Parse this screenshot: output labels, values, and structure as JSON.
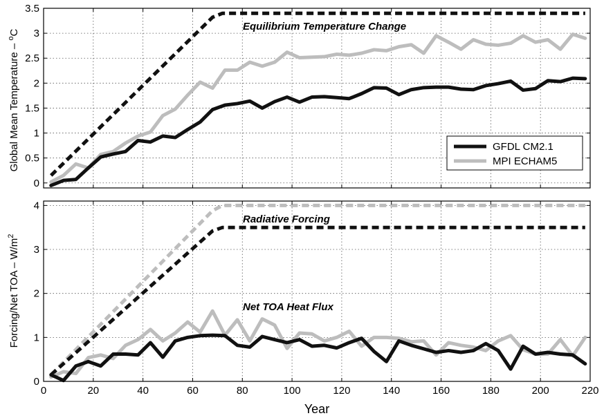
{
  "chart_data": [
    {
      "type": "line",
      "ylabel": "Global Mean Temperature – °C",
      "ylabel_main": "Global Mean Temperature – ",
      "ylabel_sup": "o",
      "ylabel_unit": "C",
      "xlim": [
        0,
        220
      ],
      "ylim": [
        -0.1,
        3.5
      ],
      "yticks": [
        0,
        0.5,
        1,
        1.5,
        2,
        2.5,
        3,
        3.5
      ],
      "ytick_labels": [
        "0",
        "0.5",
        "1",
        "1.5",
        "2",
        "2.5",
        "3",
        "3.5"
      ],
      "grid": true,
      "legend_position": "lower-right",
      "annotations": [
        {
          "text": "Equilibrium Temperature Change",
          "x": 76,
          "y": 3.1
        }
      ],
      "series": [
        {
          "name": "GFDL CM2.1",
          "style": "solid",
          "color": "#111111",
          "x": [
            3,
            8,
            13,
            18,
            23,
            28,
            33,
            38,
            43,
            48,
            53,
            58,
            63,
            68,
            73,
            78,
            83,
            88,
            93,
            98,
            103,
            108,
            113,
            118,
            123,
            128,
            133,
            138,
            143,
            148,
            153,
            158,
            163,
            168,
            173,
            178,
            183,
            188,
            193,
            198,
            203,
            208,
            213,
            218
          ],
          "y": [
            -0.05,
            0.05,
            0.07,
            0.3,
            0.52,
            0.58,
            0.63,
            0.85,
            0.82,
            0.94,
            0.91,
            1.07,
            1.22,
            1.47,
            1.56,
            1.59,
            1.64,
            1.5,
            1.63,
            1.72,
            1.62,
            1.72,
            1.73,
            1.71,
            1.69,
            1.79,
            1.91,
            1.9,
            1.77,
            1.87,
            1.91,
            1.92,
            1.92,
            1.88,
            1.87,
            1.95,
            1.99,
            2.04,
            1.86,
            1.89,
            2.05,
            2.03,
            2.1,
            2.09
          ]
        },
        {
          "name": "MPI ECHAM5",
          "style": "solid",
          "color": "#bdbdbd",
          "x": [
            3,
            8,
            13,
            18,
            23,
            28,
            33,
            38,
            43,
            48,
            53,
            58,
            63,
            68,
            73,
            78,
            83,
            88,
            93,
            98,
            103,
            108,
            113,
            118,
            123,
            128,
            133,
            138,
            143,
            148,
            153,
            158,
            163,
            168,
            173,
            178,
            183,
            188,
            193,
            198,
            203,
            208,
            213,
            218
          ],
          "y": [
            0.02,
            0.15,
            0.38,
            0.3,
            0.57,
            0.63,
            0.8,
            0.94,
            1.02,
            1.35,
            1.48,
            1.76,
            2.02,
            1.9,
            2.26,
            2.26,
            2.42,
            2.34,
            2.42,
            2.62,
            2.51,
            2.52,
            2.53,
            2.58,
            2.56,
            2.6,
            2.67,
            2.65,
            2.73,
            2.77,
            2.6,
            2.95,
            2.82,
            2.68,
            2.87,
            2.78,
            2.76,
            2.8,
            2.95,
            2.82,
            2.87,
            2.68,
            2.98,
            2.9
          ]
        },
        {
          "name": "",
          "style": "dashed",
          "color": "#111111",
          "x": [
            3,
            68,
            72,
            218
          ],
          "y": [
            0.15,
            3.32,
            3.4,
            3.4
          ]
        },
        {
          "name": "",
          "style": "dashed",
          "color": "#bdbdbd",
          "x": [
            3,
            68,
            72,
            218
          ],
          "y": [
            0.15,
            3.32,
            3.4,
            3.4
          ]
        }
      ]
    },
    {
      "type": "line",
      "ylabel": "Forcing/Net TOA – W/m²",
      "ylabel_main": "Forcing/Net TOA – W/m",
      "ylabel_sup": "2",
      "xlabel": "Year",
      "xlim": [
        0,
        220
      ],
      "ylim": [
        0,
        4.1
      ],
      "yticks": [
        0,
        1,
        2,
        3,
        4
      ],
      "ytick_labels": [
        "0",
        "1",
        "2",
        "3",
        "4"
      ],
      "xticks": [
        0,
        20,
        40,
        60,
        80,
        100,
        120,
        140,
        160,
        180,
        200,
        220
      ],
      "xtick_labels": [
        "0",
        "20",
        "40",
        "60",
        "80",
        "100",
        "120",
        "140",
        "160",
        "180",
        "200",
        "220"
      ],
      "grid": true,
      "annotations": [
        {
          "text": "Radiative Forcing",
          "x": 76,
          "y": 3.6
        },
        {
          "text": "Net TOA Heat Flux",
          "x": 76,
          "y": 1.62
        }
      ],
      "series": [
        {
          "name": "GFDL CM2.1",
          "style": "solid",
          "color": "#111111",
          "x": [
            3,
            8,
            13,
            18,
            23,
            28,
            33,
            38,
            43,
            48,
            53,
            58,
            63,
            68,
            73,
            78,
            83,
            88,
            93,
            98,
            103,
            108,
            113,
            118,
            123,
            128,
            133,
            138,
            143,
            148,
            153,
            158,
            163,
            168,
            173,
            178,
            183,
            188,
            193,
            198,
            203,
            208,
            213,
            218
          ],
          "y": [
            0.15,
            0.02,
            0.35,
            0.45,
            0.35,
            0.62,
            0.62,
            0.6,
            0.88,
            0.55,
            0.92,
            1.0,
            1.04,
            1.05,
            1.04,
            0.82,
            0.78,
            1.02,
            0.95,
            0.88,
            0.95,
            0.8,
            0.82,
            0.76,
            0.88,
            0.98,
            0.68,
            0.45,
            0.92,
            0.82,
            0.74,
            0.66,
            0.7,
            0.66,
            0.7,
            0.86,
            0.7,
            0.28,
            0.8,
            0.62,
            0.66,
            0.62,
            0.6,
            0.4
          ]
        },
        {
          "name": "MPI ECHAM5",
          "style": "solid",
          "color": "#bdbdbd",
          "x": [
            3,
            8,
            13,
            18,
            23,
            28,
            33,
            38,
            43,
            48,
            53,
            58,
            63,
            68,
            73,
            78,
            83,
            88,
            93,
            98,
            103,
            108,
            113,
            118,
            123,
            128,
            133,
            138,
            143,
            148,
            153,
            158,
            163,
            168,
            173,
            178,
            183,
            188,
            193,
            198,
            203,
            208,
            213,
            218
          ],
          "y": [
            0.1,
            0.22,
            0.18,
            0.54,
            0.6,
            0.52,
            0.82,
            0.95,
            1.18,
            0.92,
            1.1,
            1.35,
            1.12,
            1.6,
            1.05,
            1.4,
            0.92,
            1.42,
            1.28,
            0.75,
            1.1,
            1.08,
            0.92,
            1.0,
            1.14,
            0.8,
            1.0,
            1.0,
            0.98,
            0.9,
            0.92,
            0.6,
            0.88,
            0.82,
            0.78,
            0.7,
            0.92,
            1.04,
            0.72,
            0.62,
            0.62,
            0.95,
            0.58,
            1.0
          ]
        },
        {
          "name": "",
          "style": "dashed",
          "color": "#111111",
          "x": [
            3,
            68,
            72,
            218
          ],
          "y": [
            0.15,
            3.42,
            3.5,
            3.5
          ]
        },
        {
          "name": "",
          "style": "dashed",
          "color": "#bdbdbd",
          "x": [
            3,
            68,
            72,
            218
          ],
          "y": [
            0.15,
            3.88,
            4.0,
            4.0
          ]
        }
      ]
    }
  ]
}
